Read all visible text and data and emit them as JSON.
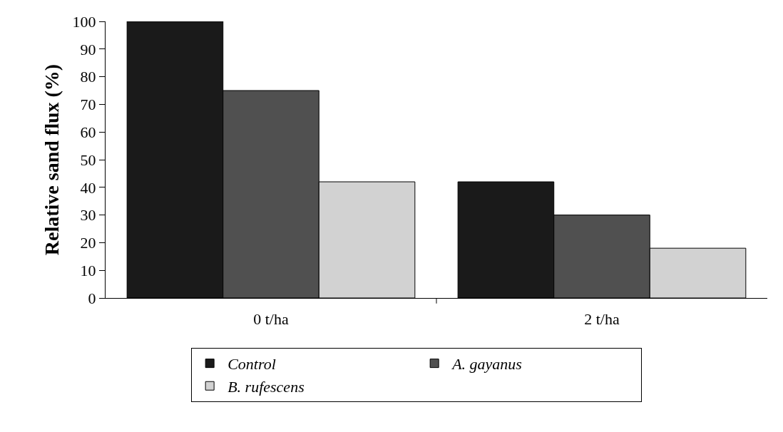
{
  "chart_data": {
    "type": "bar",
    "ylabel": "Relative sand flux (%)",
    "categories": [
      "0 t/ha",
      "2 t/ha"
    ],
    "series": [
      {
        "name": "Control",
        "color": "#1a1a1a",
        "values": [
          100,
          42
        ]
      },
      {
        "name": "A. gayanus",
        "color": "#505050",
        "values": [
          75,
          30
        ]
      },
      {
        "name": "B. rufescens",
        "color": "#d2d2d2",
        "values": [
          42,
          18
        ]
      }
    ],
    "ylim": [
      0,
      100
    ],
    "yticks": [
      0,
      10,
      20,
      30,
      40,
      50,
      60,
      70,
      80,
      90,
      100
    ],
    "grid": false,
    "legend": "bottom"
  }
}
